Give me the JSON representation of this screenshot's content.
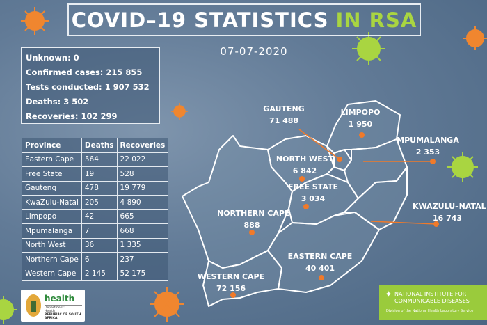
{
  "title": {
    "main": "COVID–19 STATISTICS",
    "accent": "IN RSA"
  },
  "date": "07-07-2020",
  "summary": [
    "Unknown: 0",
    "Confirmed cases: 215 855",
    "Tests conducted: 1 907 532",
    "Deaths: 3 502",
    "Recoveries: 102 299"
  ],
  "table": {
    "headers": [
      "Province",
      "Deaths",
      "Recoveries"
    ],
    "rows": [
      [
        "Eastern Cape",
        "564",
        "22 022"
      ],
      [
        "Free State",
        "19",
        "528"
      ],
      [
        "Gauteng",
        "478",
        "19 779"
      ],
      [
        "KwaZulu-Natal",
        "205",
        "4 890"
      ],
      [
        "Limpopo",
        "42",
        "665"
      ],
      [
        "Mpumalanga",
        "7",
        "668"
      ],
      [
        "North West",
        "36",
        "1 335"
      ],
      [
        "Northern Cape",
        "6",
        "237"
      ],
      [
        "Western Cape",
        "2 145",
        "52 175"
      ]
    ]
  },
  "map": {
    "provinces": [
      {
        "name": "GAUTENG",
        "cases": "71 488"
      },
      {
        "name": "LIMPOPO",
        "cases": "1 950"
      },
      {
        "name": "MPUMALANGA",
        "cases": "2 353"
      },
      {
        "name": "NORTH WEST",
        "cases": "6 842"
      },
      {
        "name": "FREE STATE",
        "cases": "3 034"
      },
      {
        "name": "KWAZULU–NATAL",
        "cases": "16 743"
      },
      {
        "name": "NORTHERN CAPE",
        "cases": "888"
      },
      {
        "name": "EASTERN CAPE",
        "cases": "40 401"
      },
      {
        "name": "WESTERN CAPE",
        "cases": "72 156"
      }
    ]
  },
  "logos": {
    "health": {
      "word": "health",
      "sub1": "Department:",
      "sub2": "Health",
      "sub3": "REPUBLIC OF SOUTH AFRICA"
    },
    "nicd": {
      "line1": "NATIONAL INSTITUTE FOR",
      "line2": "COMMUNICABLE DISEASES",
      "line3": "Division of the National Health Laboratory Service"
    }
  },
  "colors": {
    "accent_green": "#a9d541",
    "marker_orange": "#f07a2a"
  }
}
